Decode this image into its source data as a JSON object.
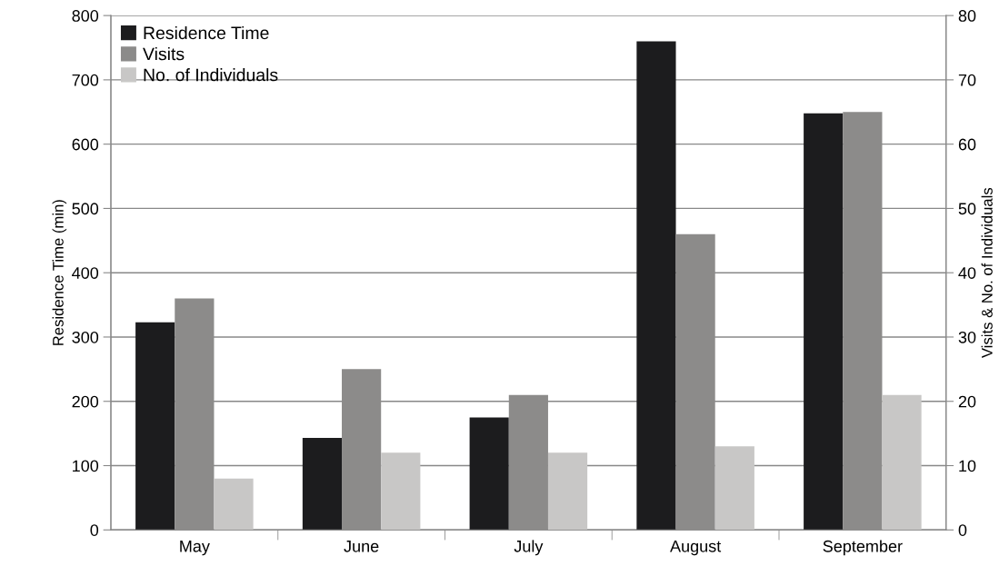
{
  "chart_data": {
    "type": "bar",
    "ylabel": "Residence Time (min)",
    "y2label": "Visits & No. of Individuals",
    "categories": [
      "May",
      "June",
      "July",
      "August",
      "September"
    ],
    "series": [
      {
        "name": "Residence Time",
        "color": "#1c1c1e",
        "values": [
          323,
          143,
          175,
          760,
          648
        ]
      },
      {
        "name": "Visits",
        "color": "#8c8b8a",
        "values": [
          36,
          25,
          21,
          46,
          65
        ],
        "axis": "y2"
      },
      {
        "name": "No. of Individuals",
        "color": "#c8c7c6",
        "values": [
          8,
          12,
          12,
          13,
          21
        ],
        "axis": "y2"
      }
    ],
    "ylim": [
      0,
      800
    ],
    "yticks": [
      0,
      100,
      200,
      300,
      400,
      500,
      600,
      700,
      800
    ],
    "y2lim": [
      0,
      80
    ],
    "y2ticks": [
      0,
      10,
      20,
      30,
      40,
      50,
      60,
      70,
      80
    ],
    "grid": "y",
    "legend": "top left"
  }
}
